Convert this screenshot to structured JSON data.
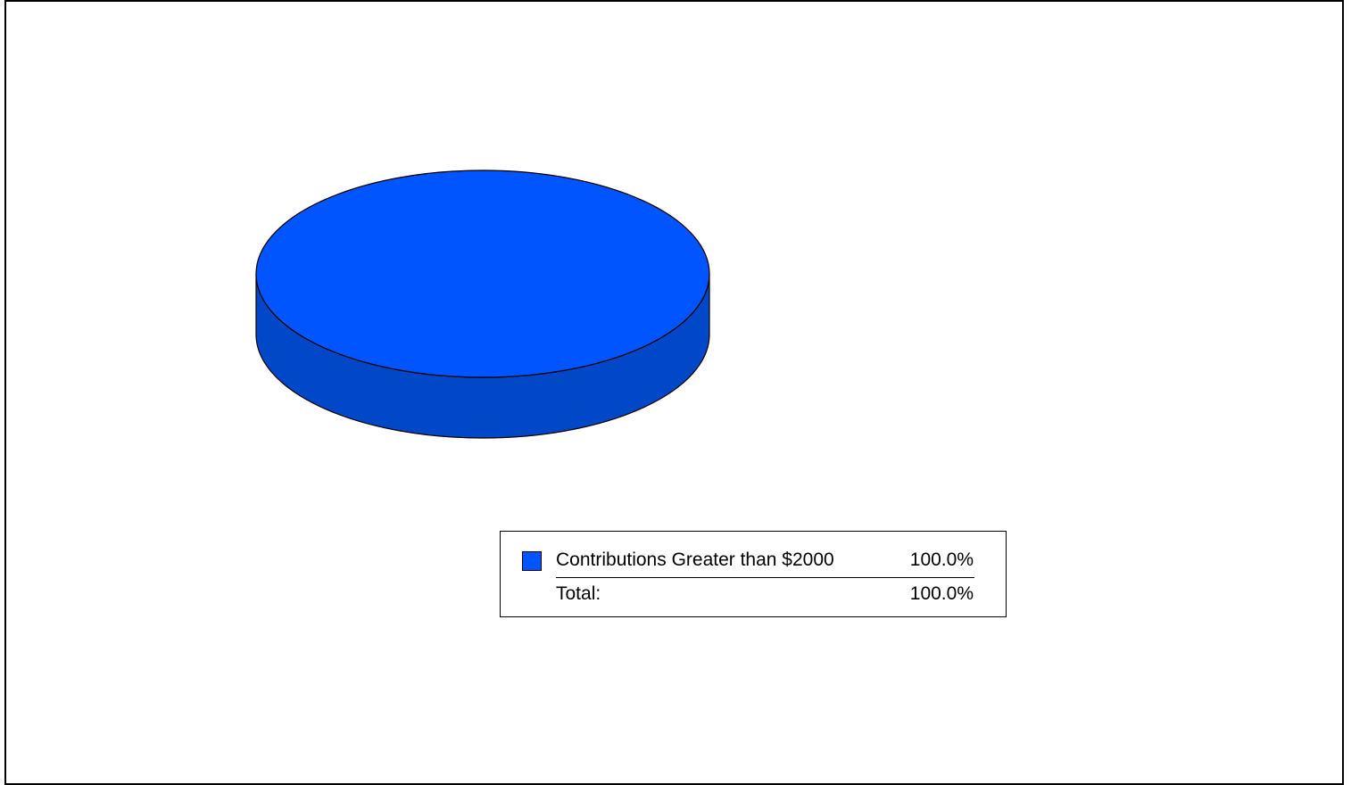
{
  "chart_data": {
    "type": "pie",
    "style": "3d",
    "slices": [
      {
        "label": "Contributions Greater than $2000",
        "value": 100.0,
        "percent_label": "100.0%",
        "color": "#0055ff",
        "side_color": "#0048c8"
      }
    ],
    "total_label": "Total:",
    "total_value": "100.0%",
    "legend_placement": "below-right"
  }
}
